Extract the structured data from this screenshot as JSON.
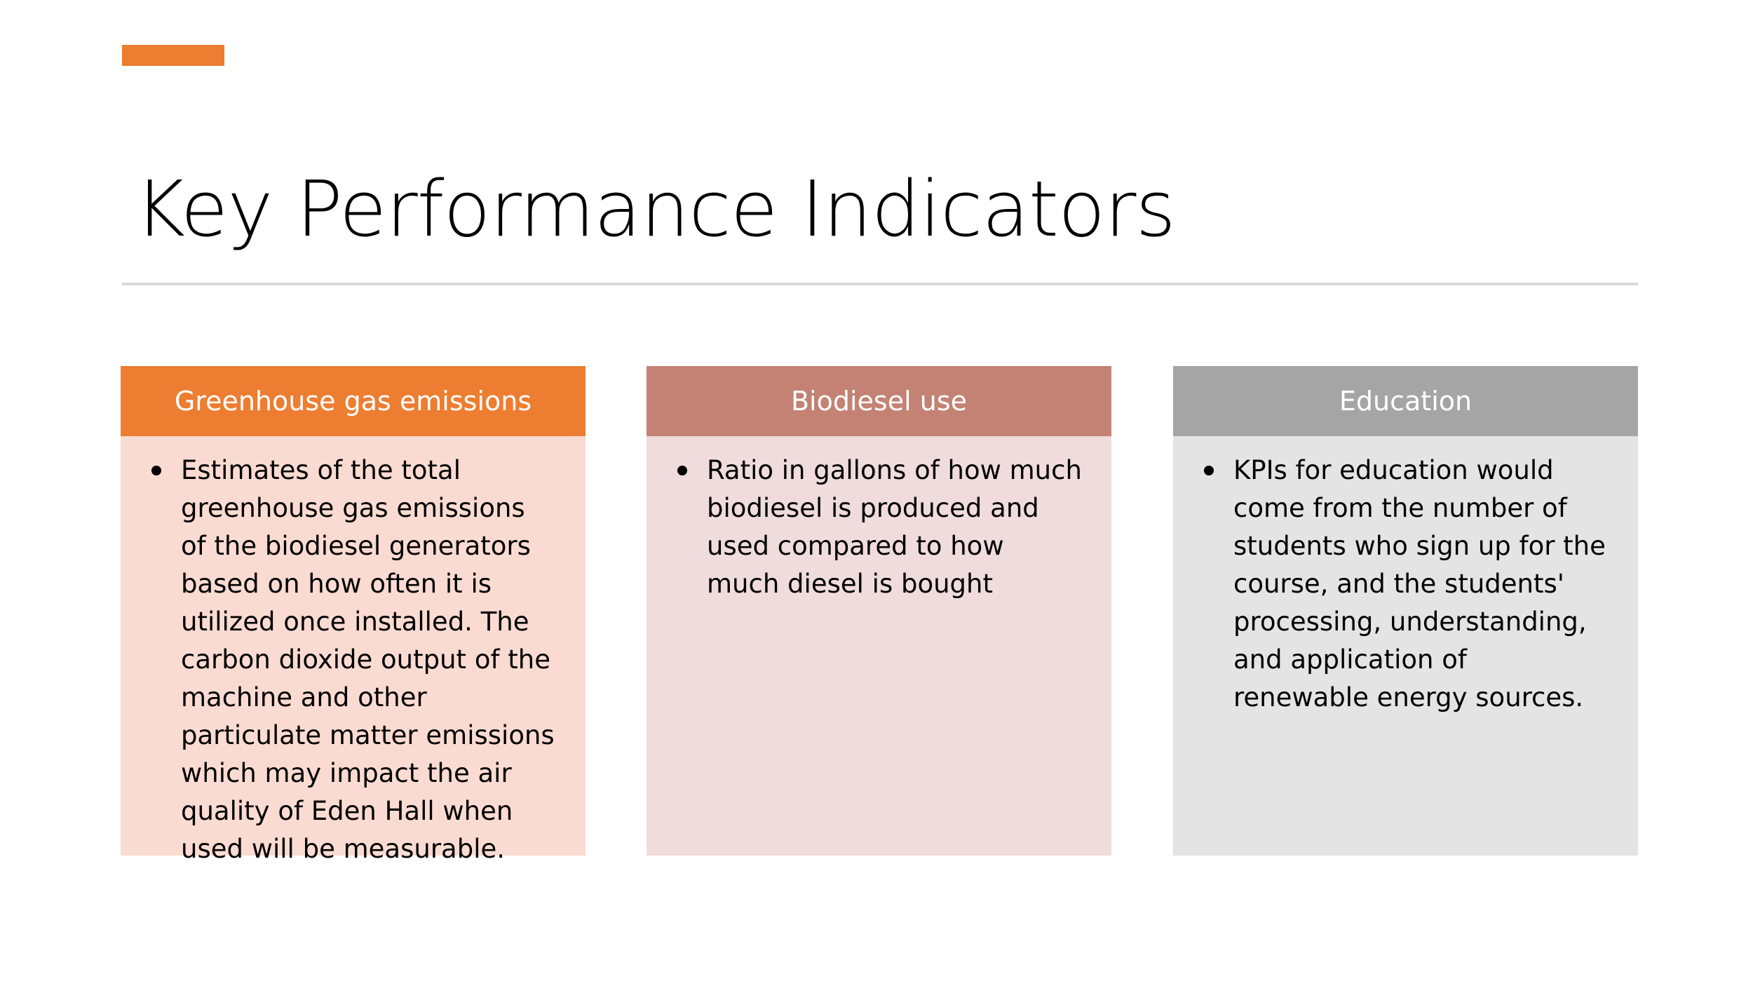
{
  "slide": {
    "title": "Key Performance Indicators",
    "accent_color": "#ED7D31"
  },
  "cards": [
    {
      "heading": "Greenhouse gas emissions",
      "header_color": "#ED7D31",
      "body_color": "#FADBD2",
      "bullets": [
        "Estimates of the total greenhouse gas emissions of the biodiesel generators based on how often it is utilized once installed. The carbon dioxide output of the machine and other particulate matter emissions which may impact the air quality of Eden Hall when used will be measurable."
      ]
    },
    {
      "heading": "Biodiesel use",
      "header_color": "#C38273",
      "body_color": "#F0DCDC",
      "bullets": [
        "Ratio in gallons of how much biodiesel is produced and used compared to how much diesel is bought"
      ]
    },
    {
      "heading": "Education",
      "header_color": "#A5A5A5",
      "body_color": "#E4E4E4",
      "bullets": [
        "KPIs for education would come from the number of students who sign up for the course, and the students' processing, understanding, and application of renewable energy sources."
      ]
    }
  ]
}
